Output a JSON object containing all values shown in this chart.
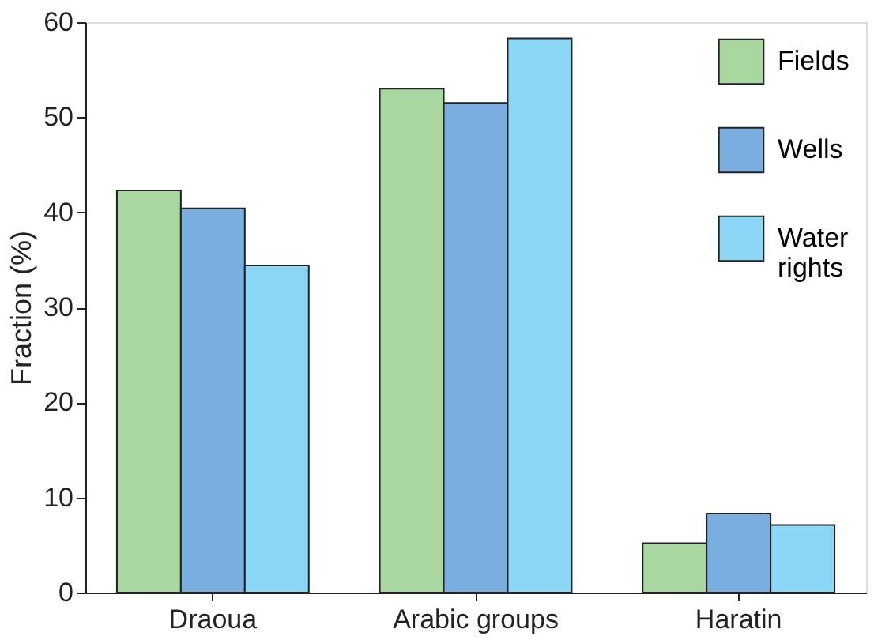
{
  "chart_data": {
    "type": "bar",
    "ylabel": "Fraction (%)",
    "categories": [
      "Draoua",
      "Arabic groups",
      "Haratin"
    ],
    "series": [
      {
        "name": "Fields",
        "color": "#a8d8a0",
        "values": [
          42.3,
          53.0,
          5.2
        ]
      },
      {
        "name": "Wells",
        "color": "#7aaee0",
        "values": [
          40.4,
          51.5,
          8.3
        ]
      },
      {
        "name": "Water rights",
        "color": "#8ad8f5",
        "values": [
          34.4,
          58.3,
          7.1
        ]
      }
    ],
    "ylim": [
      0,
      60
    ],
    "yticks": [
      0,
      10,
      20,
      30,
      40,
      50,
      60
    ],
    "grid": false,
    "legend": "top right"
  }
}
